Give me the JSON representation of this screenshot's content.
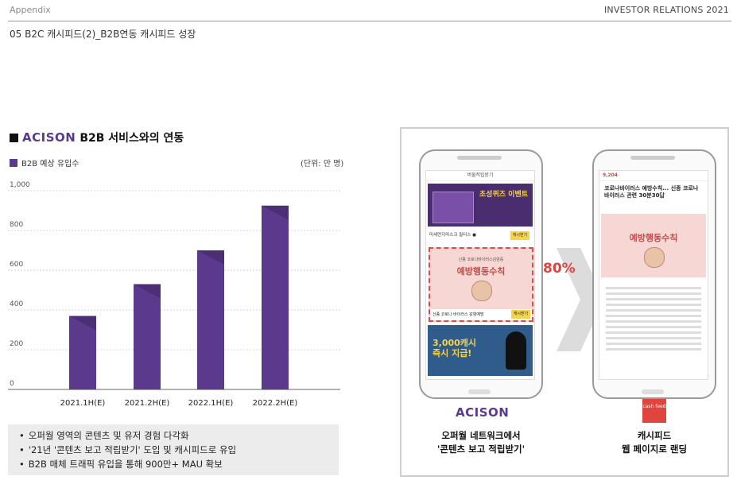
{
  "header": {
    "left": "Appendix",
    "right": "INVESTOR RELATIONS 2021"
  },
  "subtitle": "05  B2C 캐시피드(2)_B2B연동 캐시피드 성장",
  "section": {
    "logo": "ACISON",
    "title": "B2B 서비스와의 연동"
  },
  "legend": {
    "label": "B2B 예상 유입수"
  },
  "unit": "(단위: 만 명)",
  "chart_data": {
    "type": "bar",
    "categories": [
      "2021.1H(E)",
      "2021.2H(E)",
      "2022.1H(E)",
      "2022.2H(E)"
    ],
    "values": [
      370,
      530,
      700,
      925
    ],
    "ylim": [
      0,
      1000
    ],
    "yticks": [
      "0",
      "200",
      "400",
      "600",
      "800",
      "1,000"
    ],
    "bar_color": "#5b3a8e",
    "grid": true
  },
  "bullets": [
    "오퍼월 영역의 콘텐츠 및 유저 경험 다각화",
    "'21년 '콘텐츠 보고 적립받기' 도입 및 캐시피드로 유입",
    "B2B 매체 트래픽 유입을 통해 900만+ MAU 확보"
  ],
  "panel": {
    "percent": "80%",
    "left_phone": {
      "topbar": "버물적립받기",
      "quiz_title": "초성퀴즈 이벤트",
      "row1_text": "미세먼지마스크 필터스 ●",
      "row1_btn": "캐시받기",
      "promo_small": "신종 코로나바이러스감염증",
      "promo_title": "예방행동수칙",
      "promo_bottom": "신종 코로나 바이러스 감염예방",
      "promo_btn": "캐시받기",
      "blue_text1": "3,000캐시",
      "blue_text2": "즉시 지급!"
    },
    "right_phone": {
      "count": "9,204",
      "article_title": "코로나바이러스 예방수칙... 신종 코로나바이러스 관련 30분30답",
      "banner_title": "예방행동수칙"
    },
    "left_caption": {
      "logo": "ACISON",
      "line1": "오퍼월 네트워크에서",
      "line2": "'콘텐츠 보고 적립받기'"
    },
    "right_caption": {
      "logo": "cash feed",
      "line1": "캐시피드",
      "line2": "웹 페이지로 랜딩"
    }
  },
  "colors": {
    "brand_purple": "#5b3a8e",
    "accent_red": "#e0443f"
  }
}
